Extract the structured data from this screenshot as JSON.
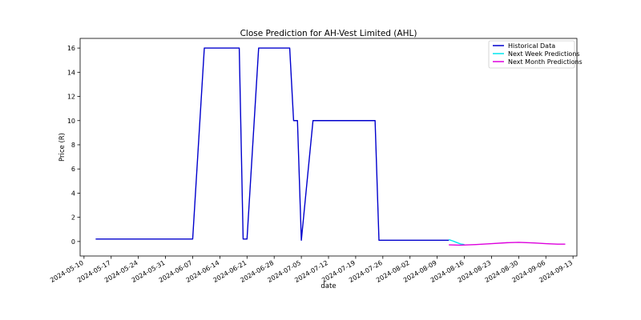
{
  "chart_data": {
    "type": "line",
    "title": "Close Prediction for AH-Vest Limited (AHL)",
    "xlabel": "date",
    "ylabel": "Price (R)",
    "xlim": [
      "2024-05-09",
      "2024-09-14"
    ],
    "ylim": [
      -1.2,
      16.8
    ],
    "x_ticks": [
      "2024-05-10",
      "2024-05-17",
      "2024-05-24",
      "2024-05-31",
      "2024-06-07",
      "2024-06-14",
      "2024-06-21",
      "2024-06-28",
      "2024-07-05",
      "2024-07-12",
      "2024-07-19",
      "2024-07-26",
      "2024-08-02",
      "2024-08-09",
      "2024-08-16",
      "2024-08-23",
      "2024-08-30",
      "2024-09-06",
      "2024-09-13"
    ],
    "y_ticks": [
      0,
      2,
      4,
      6,
      8,
      10,
      12,
      14,
      16
    ],
    "grid": false,
    "legend_position": "top-right",
    "series": [
      {
        "name": "Historical Data",
        "color": "#0000cd",
        "points": [
          [
            "2024-05-13",
            0.2
          ],
          [
            "2024-06-07",
            0.2
          ],
          [
            "2024-06-10",
            16
          ],
          [
            "2024-06-19",
            16
          ],
          [
            "2024-06-20",
            0.2
          ],
          [
            "2024-06-21",
            0.2
          ],
          [
            "2024-06-24",
            16
          ],
          [
            "2024-07-02",
            16
          ],
          [
            "2024-07-03",
            10
          ],
          [
            "2024-07-04",
            10
          ],
          [
            "2024-07-05",
            0.1
          ],
          [
            "2024-07-08",
            10
          ],
          [
            "2024-07-24",
            10
          ],
          [
            "2024-07-25",
            0.1
          ],
          [
            "2024-08-12",
            0.1
          ]
        ]
      },
      {
        "name": "Next Week Predictions",
        "color": "#00e5ee",
        "points": [
          [
            "2024-08-12",
            0.15
          ],
          [
            "2024-08-13",
            0.05
          ],
          [
            "2024-08-14",
            -0.08
          ],
          [
            "2024-08-15",
            -0.2
          ],
          [
            "2024-08-16",
            -0.25
          ]
        ]
      },
      {
        "name": "Next Month Predictions",
        "color": "#dd00dd",
        "points": [
          [
            "2024-08-12",
            -0.28
          ],
          [
            "2024-08-15",
            -0.3
          ],
          [
            "2024-08-19",
            -0.25
          ],
          [
            "2024-08-23",
            -0.18
          ],
          [
            "2024-08-27",
            -0.1
          ],
          [
            "2024-08-30",
            -0.07
          ],
          [
            "2024-09-03",
            -0.12
          ],
          [
            "2024-09-06",
            -0.18
          ],
          [
            "2024-09-09",
            -0.22
          ],
          [
            "2024-09-11",
            -0.22
          ]
        ]
      }
    ]
  }
}
